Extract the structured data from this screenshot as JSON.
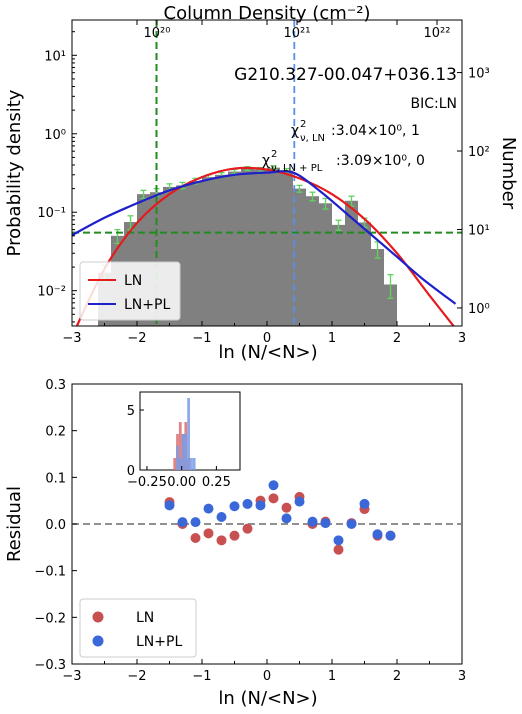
{
  "chart_data": [
    {
      "type": "bar",
      "title": "G210.327-00.047+036.13",
      "top_axis_label": "Column Density (cm⁻²)",
      "top_ticks": [
        {
          "log10": 20,
          "label": "10²⁰"
        },
        {
          "log10": 21,
          "label": "10²¹"
        },
        {
          "log10": 22,
          "label": "10²²"
        }
      ],
      "xlabel": "ln (N/<N>)",
      "ylabel": "Probability density",
      "ylabel_right": "Number",
      "xlim": [
        -3,
        3
      ],
      "ylim_log10": [
        -2.45,
        1.45
      ],
      "x_ticks": [
        -3,
        -2,
        -1,
        0,
        1,
        2,
        3
      ],
      "x_tick_labels": [
        "−3",
        "−2",
        "−1",
        "0",
        "1",
        "2",
        "3"
      ],
      "y_ticks": [
        {
          "log10": -2,
          "label": "10⁻²"
        },
        {
          "log10": -1,
          "label": "10⁻¹"
        },
        {
          "log10": 0,
          "label": "10⁰"
        },
        {
          "log10": 1,
          "label": "10¹"
        }
      ],
      "y_right_ticks": [
        {
          "log10_density": -2.22,
          "label": "10⁰"
        },
        {
          "log10_density": -1.22,
          "label": "10¹"
        },
        {
          "log10_density": -0.22,
          "label": "10²"
        },
        {
          "log10_density": 0.78,
          "label": "10³"
        }
      ],
      "annotations": {
        "bic": "BIC:LN",
        "chi_ln_prefix": "χ",
        "chi_ln_sub": "ν, LN",
        "chi_ln_sup": "2",
        "chi_ln_value": ":3.04×10⁰, 1",
        "chi_lnpl_prefix": "χ",
        "chi_lnpl_sub": "ν, LN + PL",
        "chi_lnpl_sup": "2",
        "chi_lnpl_value": ":3.09×10⁰, 0"
      },
      "histogram": {
        "bin_edges": [
          -2.6,
          -2.4,
          -2.2,
          -2.0,
          -1.8,
          -1.6,
          -1.4,
          -1.2,
          -1.0,
          -0.8,
          -0.6,
          -0.4,
          -0.2,
          0.0,
          0.2,
          0.4,
          0.6,
          0.8,
          1.0,
          1.2,
          1.4,
          1.6,
          1.8,
          2.0
        ],
        "density": [
          0.017,
          0.05,
          0.075,
          0.17,
          0.18,
          0.21,
          0.22,
          0.25,
          0.28,
          0.3,
          0.33,
          0.36,
          0.35,
          0.37,
          0.34,
          0.2,
          0.16,
          0.13,
          0.069,
          0.14,
          0.074,
          0.034,
          0.012
        ],
        "error_low": [
          0.013,
          0.04,
          0.06,
          0.15,
          0.16,
          0.19,
          0.2,
          0.23,
          0.26,
          0.28,
          0.31,
          0.34,
          0.33,
          0.35,
          0.32,
          0.18,
          0.14,
          0.11,
          0.059,
          0.12,
          0.064,
          0.026,
          0.008
        ],
        "error_high": [
          0.021,
          0.06,
          0.09,
          0.19,
          0.2,
          0.23,
          0.24,
          0.27,
          0.3,
          0.32,
          0.35,
          0.38,
          0.37,
          0.39,
          0.36,
          0.22,
          0.18,
          0.15,
          0.079,
          0.16,
          0.084,
          0.042,
          0.016
        ],
        "color": "#808080",
        "error_color": "#5fd35f"
      },
      "series": [
        {
          "name": "LN",
          "color": "#e41a1c",
          "x": [
            -3.0,
            -2.5,
            -2.0,
            -1.5,
            -1.0,
            -0.5,
            0.0,
            0.5,
            1.0,
            1.5,
            2.0,
            2.5,
            2.9
          ],
          "y": [
            0.0026,
            0.019,
            0.073,
            0.17,
            0.28,
            0.36,
            0.35,
            0.27,
            0.17,
            0.082,
            0.03,
            0.0087,
            0.0033
          ]
        },
        {
          "name": "LN+PL",
          "color": "#1f1fcc",
          "x": [
            -3.0,
            -2.5,
            -2.0,
            -1.5,
            -1.0,
            -0.5,
            0.0,
            0.4,
            0.8,
            1.2,
            1.6,
            2.0,
            2.4,
            2.9
          ],
          "y": [
            0.051,
            0.085,
            0.13,
            0.19,
            0.25,
            0.3,
            0.32,
            0.32,
            0.19,
            0.1,
            0.052,
            0.027,
            0.014,
            0.0068
          ]
        }
      ],
      "lines": {
        "green_vline_x": -1.7,
        "blue_vline_x": 0.42,
        "green_hline_density": 0.055,
        "green_color": "#228b22",
        "blue_color": "#5b8def"
      },
      "legend": {
        "position": "lower-left",
        "entries": [
          "LN",
          "LN+PL"
        ]
      }
    },
    {
      "type": "scatter",
      "xlabel": "ln (N/<N>)",
      "ylabel": "Residual",
      "xlim": [
        -3,
        3
      ],
      "ylim": [
        -0.3,
        0.3
      ],
      "x_ticks": [
        -3,
        -2,
        -1,
        0,
        1,
        2,
        3
      ],
      "x_tick_labels": [
        "−3",
        "−2",
        "−1",
        "0",
        "1",
        "2",
        "3"
      ],
      "y_ticks": [
        -0.3,
        -0.2,
        -0.1,
        0.0,
        0.1,
        0.2,
        0.3
      ],
      "y_tick_labels": [
        "−0.3",
        "−0.2",
        "−0.1",
        "0.0",
        "0.1",
        "0.2",
        "0.3"
      ],
      "zero_line_color": "#808080",
      "series": [
        {
          "name": "LN",
          "color": "#c85050",
          "x": [
            -1.5,
            -1.3,
            -1.1,
            -0.9,
            -0.7,
            -0.5,
            -0.3,
            -0.1,
            0.1,
            0.3,
            0.5,
            0.7,
            0.9,
            1.1,
            1.3,
            1.5,
            1.7,
            1.9
          ],
          "y": [
            0.047,
            0.0,
            -0.03,
            -0.02,
            -0.035,
            -0.025,
            -0.01,
            0.05,
            0.055,
            0.035,
            0.058,
            0.0,
            0.005,
            -0.055,
            0.002,
            0.032,
            -0.025,
            -0.025
          ]
        },
        {
          "name": "LN+PL",
          "color": "#3b68d9",
          "x": [
            -1.5,
            -1.3,
            -1.1,
            -0.9,
            -0.7,
            -0.5,
            -0.3,
            -0.1,
            0.1,
            0.3,
            0.5,
            0.7,
            0.9,
            1.1,
            1.3,
            1.5,
            1.7,
            1.9
          ],
          "y": [
            0.04,
            0.004,
            0.004,
            0.033,
            0.015,
            0.038,
            0.043,
            0.04,
            0.083,
            0.012,
            0.048,
            0.005,
            0.002,
            -0.035,
            0.0,
            0.043,
            -0.022,
            -0.025
          ]
        }
      ],
      "inset": {
        "type": "histogram",
        "xlim": [
          -0.3,
          0.42
        ],
        "ylim": [
          0,
          6.5
        ],
        "x_ticks": [
          -0.25,
          0.0,
          0.25
        ],
        "x_tick_labels": [
          "−0.25",
          "0.00",
          "0.25"
        ],
        "y_ticks": [
          0,
          5
        ],
        "y_tick_labels": [
          "0",
          "5"
        ],
        "hist_ln": {
          "bin_edges": [
            -0.06,
            -0.04,
            -0.02,
            0.0,
            0.02,
            0.04,
            0.06
          ],
          "counts": [
            1,
            3,
            4,
            3,
            4,
            1
          ],
          "color": "#d97070"
        },
        "hist_lnpl": {
          "bin_edges": [
            -0.04,
            -0.02,
            0.0,
            0.02,
            0.04,
            0.06,
            0.08,
            0.1
          ],
          "counts": [
            2,
            1,
            3,
            3,
            6,
            1,
            1
          ],
          "color": "#7a9be8"
        }
      },
      "legend": {
        "position": "lower-left",
        "entries": [
          "LN",
          "LN+PL"
        ]
      }
    }
  ]
}
